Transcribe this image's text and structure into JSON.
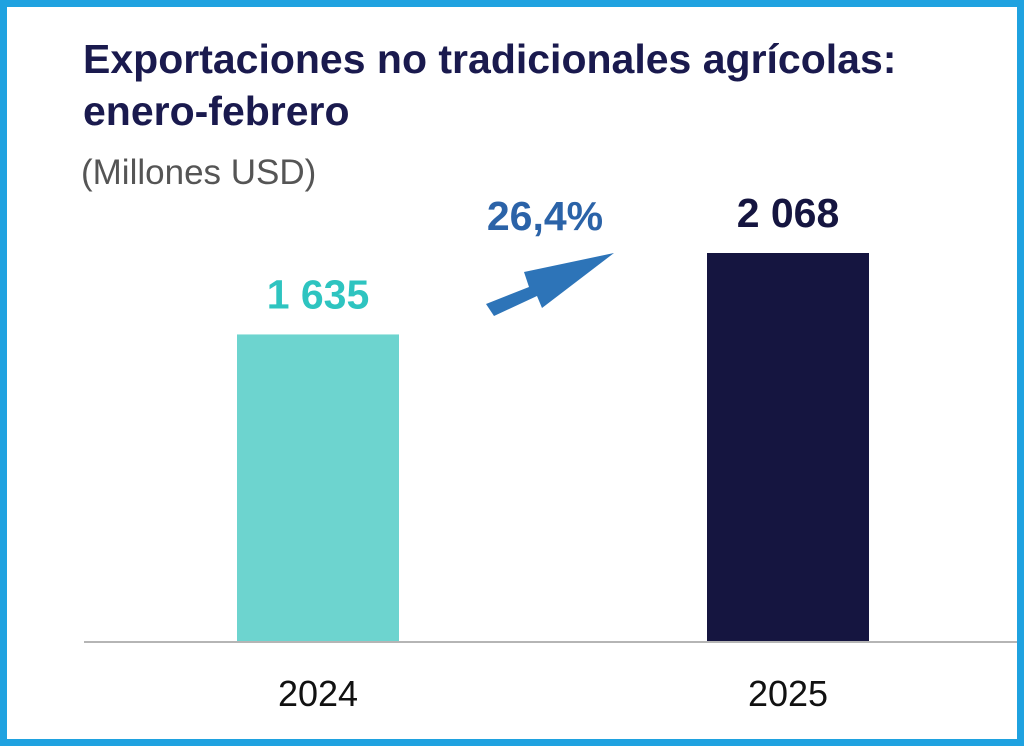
{
  "chart_data": {
    "type": "bar",
    "title": "Exportaciones no tradicionales agrícolas: enero-febrero",
    "subtitle": "(Millones USD)",
    "categories": [
      "2024",
      "2025"
    ],
    "values": [
      1635,
      2068
    ],
    "value_labels": [
      "1 635",
      "2 068"
    ],
    "bar_colors": [
      "#6dd4cf",
      "#151540"
    ],
    "label_colors": [
      "#2ec4c0",
      "#151540"
    ],
    "growth_label": "26,4%",
    "growth_color": "#2b63a8",
    "arrow_color": "#2d74b8",
    "xlabel": "",
    "ylabel": "",
    "ylim": [
      0,
      2400
    ],
    "grid": false,
    "legend": "none"
  }
}
